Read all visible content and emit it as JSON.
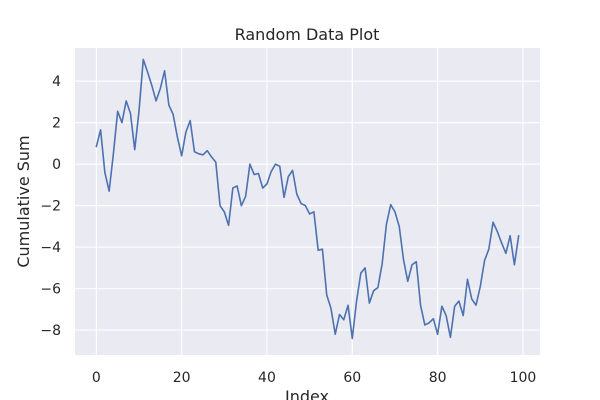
{
  "chart_data": {
    "type": "line",
    "title": "Random Data Plot",
    "xlabel": "Index",
    "ylabel": "Cumulative Sum",
    "xlim": [
      -5,
      104
    ],
    "ylim": [
      -9.2,
      5.6
    ],
    "xticks": [
      0,
      20,
      40,
      60,
      80,
      100
    ],
    "yticks": [
      -8,
      -6,
      -4,
      -2,
      0,
      2,
      4
    ],
    "grid": true,
    "series": [
      {
        "name": "cumulative sum",
        "color": "#4c72b0",
        "x": [
          0,
          1,
          2,
          3,
          4,
          5,
          6,
          7,
          8,
          9,
          10,
          11,
          12,
          13,
          14,
          15,
          16,
          17,
          18,
          19,
          20,
          21,
          22,
          23,
          24,
          25,
          26,
          27,
          28,
          29,
          30,
          31,
          32,
          33,
          34,
          35,
          36,
          37,
          38,
          39,
          40,
          41,
          42,
          43,
          44,
          45,
          46,
          47,
          48,
          49,
          50,
          51,
          52,
          53,
          54,
          55,
          56,
          57,
          58,
          59,
          60,
          61,
          62,
          63,
          64,
          65,
          66,
          67,
          68,
          69,
          70,
          71,
          72,
          73,
          74,
          75,
          76,
          77,
          78,
          79,
          80,
          81,
          82,
          83,
          84,
          85,
          86,
          87,
          88,
          89,
          90,
          91,
          92,
          93,
          94,
          95,
          96,
          97,
          98,
          99
        ],
        "values": [
          0.85,
          1.65,
          -0.4,
          -1.3,
          0.5,
          2.55,
          2.0,
          3.05,
          2.45,
          0.7,
          2.55,
          5.05,
          4.45,
          3.8,
          3.05,
          3.65,
          4.5,
          2.85,
          2.4,
          1.3,
          0.4,
          1.55,
          2.1,
          0.6,
          0.5,
          0.45,
          0.65,
          0.35,
          0.1,
          -2.0,
          -2.3,
          -2.95,
          -1.15,
          -1.05,
          -2.0,
          -1.55,
          0.0,
          -0.5,
          -0.45,
          -1.15,
          -0.95,
          -0.35,
          0.0,
          -0.1,
          -1.6,
          -0.6,
          -0.3,
          -1.45,
          -1.9,
          -2.0,
          -2.4,
          -2.3,
          -4.15,
          -4.1,
          -6.3,
          -6.95,
          -8.2,
          -7.25,
          -7.5,
          -6.8,
          -8.4,
          -6.6,
          -5.25,
          -5.0,
          -6.7,
          -6.1,
          -5.95,
          -4.8,
          -2.9,
          -1.95,
          -2.3,
          -3.0,
          -4.6,
          -5.65,
          -4.85,
          -4.7,
          -6.8,
          -7.75,
          -7.65,
          -7.45,
          -8.2,
          -6.85,
          -7.3,
          -8.35,
          -6.85,
          -6.6,
          -7.3,
          -5.55,
          -6.5,
          -6.8,
          -5.9,
          -4.65,
          -4.1,
          -2.8,
          -3.25,
          -3.8,
          -4.3,
          -3.45,
          -4.85,
          -3.45
        ]
      }
    ]
  }
}
